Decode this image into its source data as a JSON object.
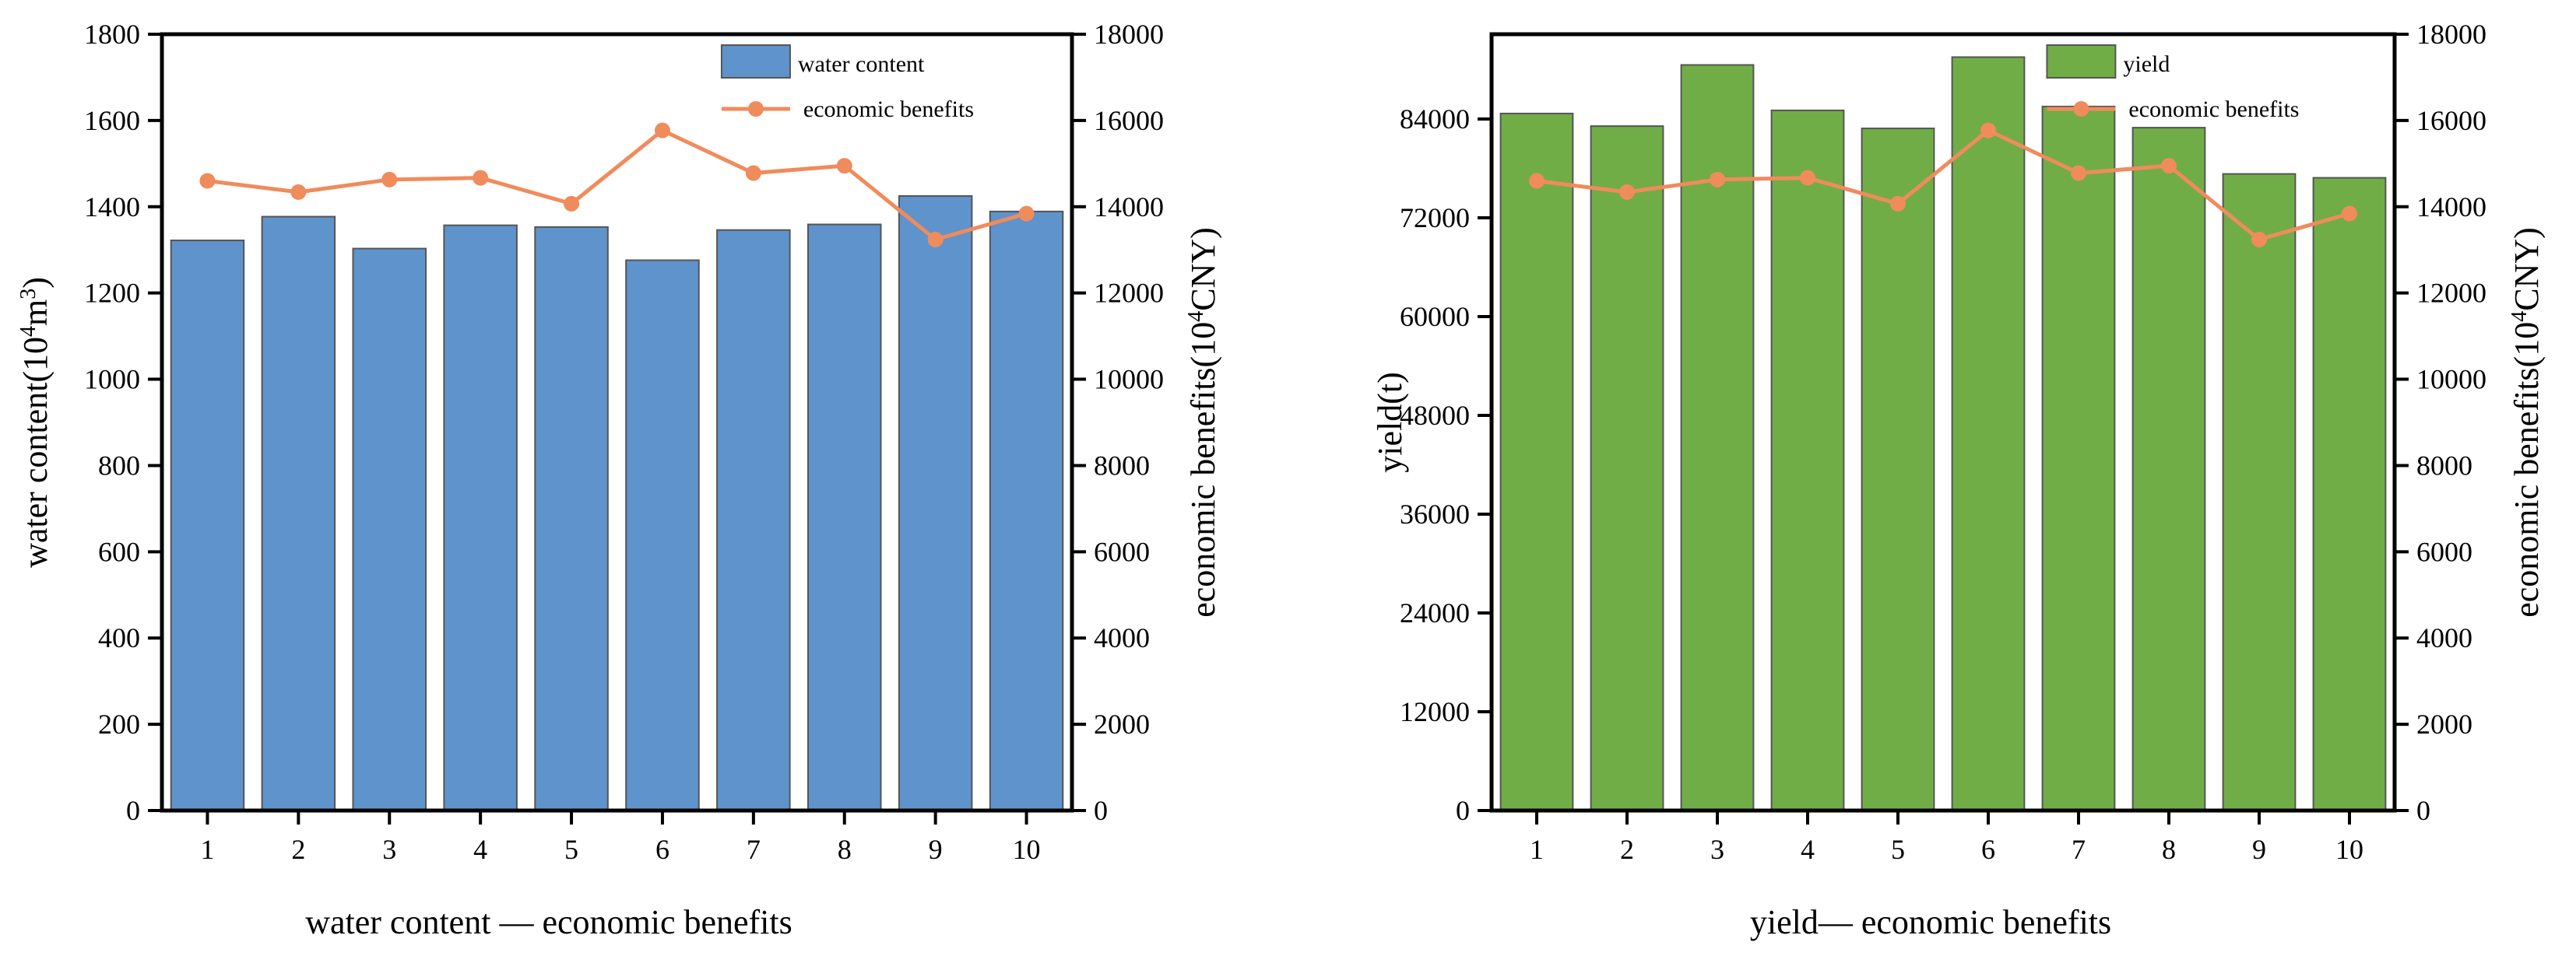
{
  "chart_data": [
    {
      "type": "bar",
      "title": "water content — economic benefits",
      "xlabel": "",
      "categories": [
        "1",
        "2",
        "3",
        "4",
        "5",
        "6",
        "7",
        "8",
        "9",
        "10"
      ],
      "ylabel": "water content(10⁴m³)",
      "ylabel_base": "water content(10",
      "ylabel_sup1": "4",
      "ylabel_mid": "m",
      "ylabel_sup2": "3",
      "ylabel_end": ")",
      "ylim": [
        0,
        1800
      ],
      "yticks": [
        0,
        200,
        400,
        600,
        800,
        1000,
        1200,
        1400,
        1600,
        1800
      ],
      "y2label": "economic benefits(10⁴CNY)",
      "y2label_base": "economic benefits(10",
      "y2label_sup": "4",
      "y2label_end": "CNY)",
      "y2lim": [
        0,
        18000
      ],
      "y2ticks": [
        0,
        2000,
        4000,
        6000,
        8000,
        10000,
        12000,
        14000,
        16000,
        18000
      ],
      "legend_position": "top-right",
      "series": [
        {
          "name": "water content",
          "type": "bar",
          "axis": "left",
          "color": "#5f93cb",
          "values": [
            1322,
            1377,
            1303,
            1357,
            1353,
            1276,
            1346,
            1359,
            1425,
            1389
          ]
        },
        {
          "name": "economic benefits",
          "type": "line",
          "axis": "right",
          "color": "#f08b5c",
          "values": [
            14600,
            14340,
            14630,
            14670,
            14070,
            15770,
            14780,
            14950,
            13240,
            13840
          ]
        }
      ]
    },
    {
      "type": "bar",
      "title": "yield— economic benefits",
      "xlabel": "",
      "categories": [
        "1",
        "2",
        "3",
        "4",
        "5",
        "6",
        "7",
        "8",
        "9",
        "10"
      ],
      "ylabel": "yield(t)",
      "ylim": [
        0,
        94300
      ],
      "yticks": [
        0,
        12000,
        24000,
        36000,
        48000,
        60000,
        72000,
        84000
      ],
      "y2label": "economic benefits(10⁴CNY)",
      "y2label_base": "economic benefits(10",
      "y2label_sup": "4",
      "y2label_end": "CNY)",
      "y2lim": [
        0,
        18000
      ],
      "y2ticks": [
        0,
        2000,
        4000,
        6000,
        8000,
        10000,
        12000,
        14000,
        16000,
        18000
      ],
      "legend_position": "top-right",
      "series": [
        {
          "name": "yield",
          "type": "bar",
          "axis": "left",
          "color": "#70ad47",
          "values": [
            84670,
            83140,
            90570,
            85050,
            82860,
            91520,
            85520,
            82950,
            77330,
            76860
          ]
        },
        {
          "name": "economic benefits",
          "type": "line",
          "axis": "right",
          "color": "#f08b5c",
          "values": [
            14600,
            14340,
            14630,
            14670,
            14070,
            15770,
            14780,
            14950,
            13240,
            13840
          ]
        }
      ]
    }
  ]
}
